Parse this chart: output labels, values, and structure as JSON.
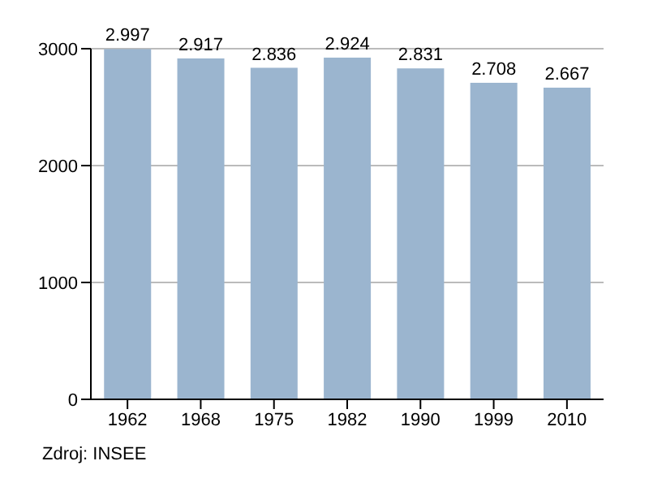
{
  "chart_data": {
    "type": "bar",
    "categories": [
      "1962",
      "1968",
      "1975",
      "1982",
      "1990",
      "1999",
      "2010"
    ],
    "values": [
      2997,
      2917,
      2836,
      2924,
      2831,
      2708,
      2667
    ],
    "value_labels": [
      "2.997",
      "2.917",
      "2.836",
      "2.924",
      "2.831",
      "2.708",
      "2.667"
    ],
    "color": "#9bb5cf",
    "ylim": [
      0,
      3000
    ],
    "yticks": [
      0,
      1000,
      2000,
      3000
    ],
    "grid": "y",
    "annotations": [
      "Zdroj: INSEE"
    ]
  }
}
